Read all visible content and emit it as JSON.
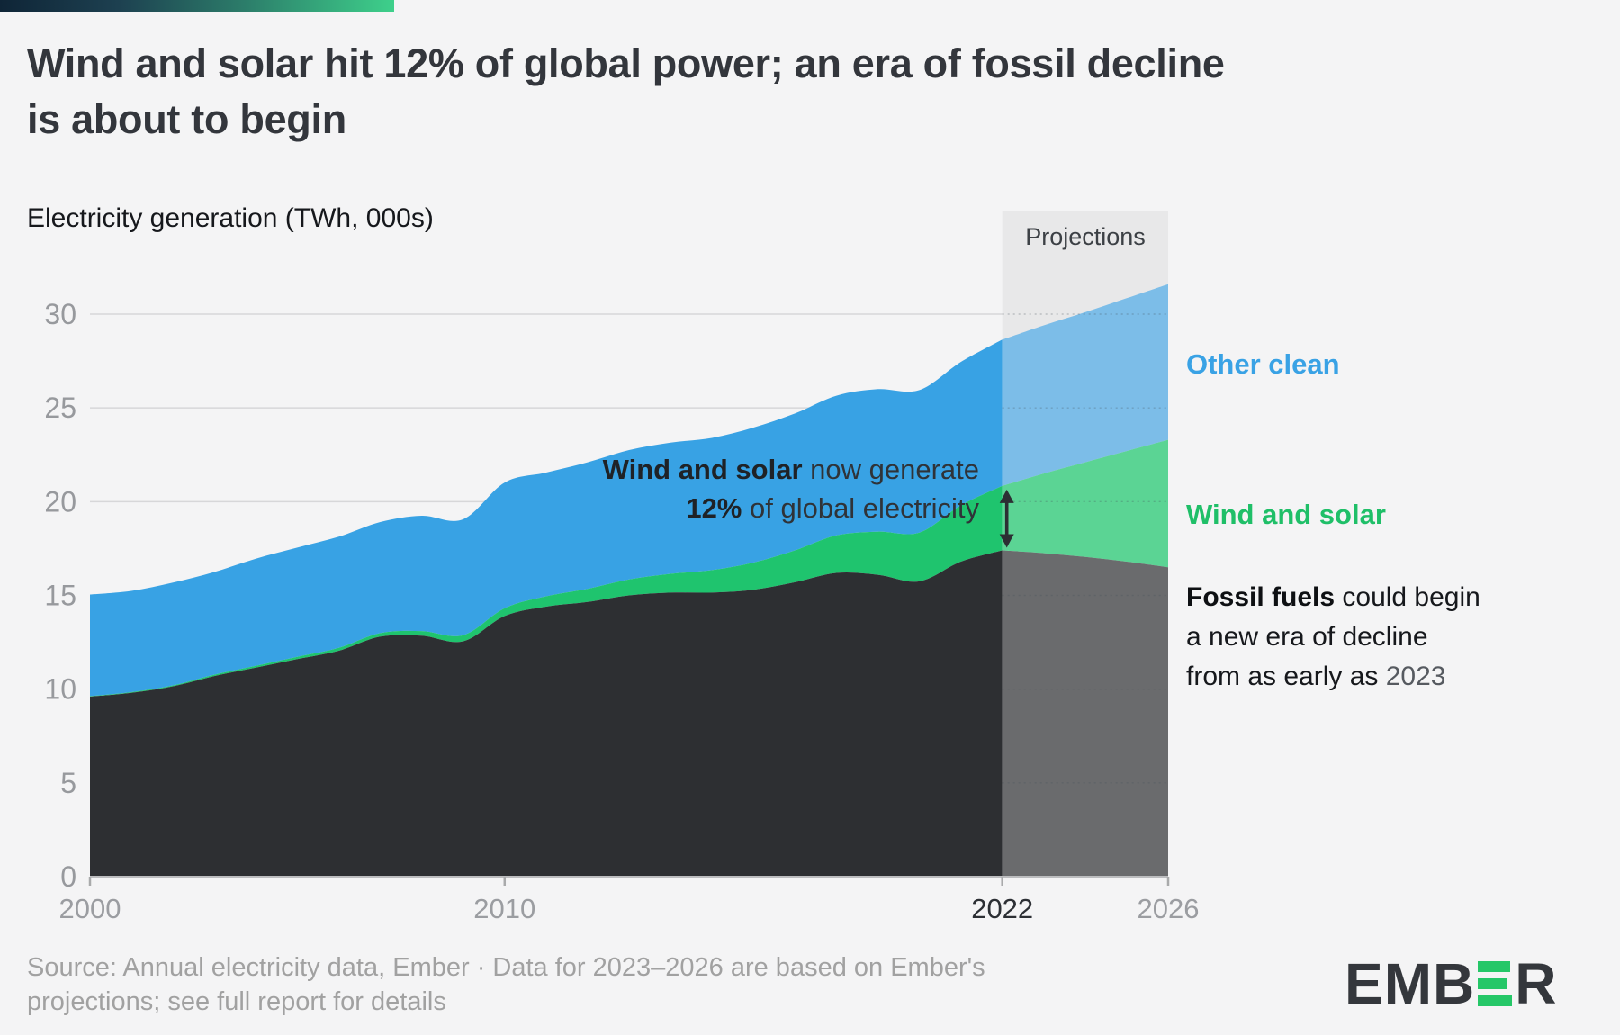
{
  "header": {
    "title_line1": "Wind and solar hit 12% of global power; an era of fossil decline",
    "title_line2": "is about to begin",
    "subtitle": "Electricity generation (TWh, 000s)"
  },
  "labels": {
    "projections": "Projections",
    "other_clean": "Other clean",
    "wind_solar": "Wind and solar",
    "annotation": {
      "line1_bold": "Wind and solar",
      "line1_rest": " now generate",
      "line2_bold": "12%",
      "line2_rest": " of global electricity"
    },
    "fossil_note": {
      "bold": "Fossil fuels",
      "rest1": " could begin",
      "line2": "a new era of decline",
      "line3": "from as early as ",
      "year": "2023"
    }
  },
  "source": {
    "line1": "Source: Annual electricity data, Ember · Data for 2023–2026 are based on Ember's",
    "line2": "projections; see full report for details"
  },
  "logo": {
    "prefix": "EMB",
    "suffix": "R",
    "green_e_color": "#25c768",
    "text_color": "#34373c"
  },
  "chart_data": {
    "type": "area",
    "stacked": true,
    "title": "Wind and solar hit 12% of global power; an era of fossil decline is about to begin",
    "ylabel": "Electricity generation (TWh, 000s)",
    "xlabel": "",
    "grid": true,
    "legend_position": "right",
    "x": [
      2000,
      2001,
      2002,
      2003,
      2004,
      2005,
      2006,
      2007,
      2008,
      2009,
      2010,
      2011,
      2012,
      2013,
      2014,
      2015,
      2016,
      2017,
      2018,
      2019,
      2020,
      2021,
      2022,
      2023,
      2024,
      2025,
      2026
    ],
    "series": [
      {
        "name": "Fossil fuels",
        "color": "#2d2f32",
        "projection_color": "#6a6b6d",
        "values": [
          9.6,
          9.8,
          10.15,
          10.7,
          11.15,
          11.6,
          12.05,
          12.8,
          12.85,
          12.55,
          13.9,
          14.4,
          14.65,
          15.0,
          15.15,
          15.15,
          15.3,
          15.7,
          16.2,
          16.1,
          15.75,
          16.8,
          17.4,
          17.25,
          17.05,
          16.8,
          16.5
        ]
      },
      {
        "name": "Wind and solar",
        "color": "#1fc46e",
        "projection_color": "#5bd494",
        "values": [
          0.03,
          0.04,
          0.05,
          0.07,
          0.09,
          0.12,
          0.15,
          0.19,
          0.25,
          0.33,
          0.42,
          0.55,
          0.7,
          0.85,
          1.0,
          1.2,
          1.45,
          1.7,
          2.0,
          2.3,
          2.6,
          3.0,
          3.44,
          4.25,
          5.05,
          5.9,
          6.8
        ]
      },
      {
        "name": "Other clean",
        "color": "#38a2e4",
        "projection_color": "#7cbde8",
        "values": [
          5.42,
          5.4,
          5.48,
          5.48,
          5.72,
          5.83,
          5.93,
          5.92,
          6.15,
          6.18,
          6.7,
          6.6,
          6.75,
          6.9,
          7.0,
          7.05,
          7.2,
          7.3,
          7.45,
          7.6,
          7.6,
          7.65,
          7.8,
          7.9,
          8.0,
          8.15,
          8.3
        ]
      }
    ],
    "projection_start": 2022,
    "projection_band_color": "#e8e8e9",
    "ylim": [
      0,
      30
    ],
    "yticks": [
      0,
      5,
      10,
      15,
      20,
      25,
      30
    ],
    "xticks": [
      {
        "label": "2000",
        "year": 2000,
        "emphasized": false
      },
      {
        "label": "2010",
        "year": 2010,
        "emphasized": false
      },
      {
        "label": "2022",
        "year": 2022,
        "emphasized": true
      },
      {
        "label": "2026",
        "year": 2026,
        "emphasized": false
      }
    ],
    "annotation_arrow": {
      "year": 2022,
      "series": "Wind and solar"
    },
    "wind_solar_share_2022": "12%"
  }
}
